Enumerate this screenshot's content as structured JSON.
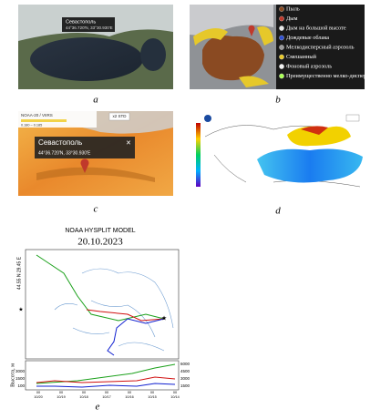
{
  "panels": {
    "a": {
      "label": "a",
      "popup": {
        "city": "Севастополь",
        "coords": "44°36.720'N, 33°30.930'E"
      }
    },
    "b": {
      "label": "b",
      "legend": [
        "Пыль",
        "Дым",
        "Дым на большой высоте",
        "Дождевые облака",
        "Мелкодисперсный аэрозоль",
        "Смешанный",
        "Фоновый аэрозоль",
        "Преимущественно мелко-дисперсный"
      ]
    },
    "c": {
      "label": "c",
      "source": "NOAA-20 / VIIRS",
      "badge": "x2 STD",
      "range": "0.180 – 0.185",
      "popup": {
        "city": "Севастополь",
        "coords": "44°36.720'N, 33°30.930'E"
      }
    },
    "d": {
      "label": "d"
    },
    "e": {
      "label": "e",
      "title": "NOAA HYSPLIT MODEL",
      "date": "20.10.2023",
      "source_label": "44.55 N  29.45 E",
      "star": "★",
      "y_label": "Высота, м",
      "left_ticks": [
        "3000",
        "1500",
        "100"
      ],
      "right_ticks": [
        "6000",
        "4500",
        "3000",
        "1500"
      ],
      "x_ticks": [
        "10/20",
        "10/19",
        "10/18",
        "10/17",
        "10/16",
        "10/15",
        "10/14"
      ],
      "hour": "00"
    }
  }
}
